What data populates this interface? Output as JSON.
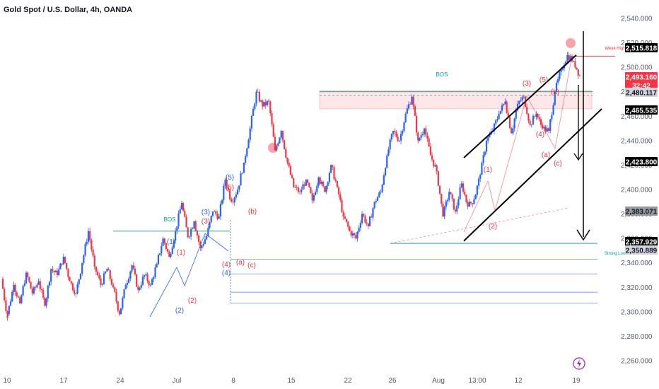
{
  "title": "Gold Spot / U.S. Dollar, 4h, OANDA",
  "chart_data": {
    "type": "candlestick",
    "symbol": "XAUUSD",
    "timeframe": "4h",
    "ylim": [
      2255,
      2545
    ],
    "y_ticks": [
      "2,540.000",
      "2,520.000",
      "2,500.000",
      "2,480.000",
      "2,460.000",
      "2,440.000",
      "2,420.000",
      "2,400.000",
      "2,380.000",
      "2,360.000",
      "2,340.000",
      "2,320.000",
      "2,300.000",
      "2,280.000",
      "2,260.000"
    ],
    "x_ticks": [
      "10",
      "17",
      "24",
      "Jul",
      "8",
      "15",
      "22",
      "26",
      "Aug",
      "13:00",
      "12",
      "19"
    ],
    "colors": {
      "up": "#2962ff",
      "down": "#f23645",
      "bos": "#089981",
      "choch": "#089981",
      "wave_blue": "#2962ff",
      "wave_red": "#f23645"
    },
    "price_path": [
      [
        2327,
        2295
      ],
      [
        2298,
        2322
      ],
      [
        2322,
        2307
      ],
      [
        2307,
        2332
      ],
      [
        2332,
        2315
      ],
      [
        2315,
        2325
      ],
      [
        2325,
        2305
      ],
      [
        2305,
        2335
      ],
      [
        2335,
        2330
      ],
      [
        2330,
        2345
      ],
      [
        2345,
        2325
      ],
      [
        2325,
        2315
      ],
      [
        2315,
        2340
      ],
      [
        2340,
        2366
      ],
      [
        2366,
        2337
      ],
      [
        2337,
        2322
      ],
      [
        2322,
        2335
      ],
      [
        2335,
        2320
      ],
      [
        2320,
        2298
      ],
      [
        2298,
        2322
      ],
      [
        2322,
        2338
      ],
      [
        2338,
        2318
      ],
      [
        2318,
        2330
      ],
      [
        2330,
        2322
      ],
      [
        2322,
        2339
      ],
      [
        2339,
        2360
      ],
      [
        2360,
        2345
      ],
      [
        2345,
        2366
      ],
      [
        2366,
        2389
      ],
      [
        2389,
        2361
      ],
      [
        2361,
        2374
      ],
      [
        2374,
        2352
      ],
      [
        2352,
        2362
      ],
      [
        2362,
        2382
      ],
      [
        2382,
        2378
      ],
      [
        2378,
        2408
      ],
      [
        2408,
        2390
      ],
      [
        2390,
        2400
      ],
      [
        2400,
        2422
      ],
      [
        2422,
        2450
      ],
      [
        2450,
        2480
      ],
      [
        2480,
        2468
      ],
      [
        2468,
        2472
      ],
      [
        2472,
        2432
      ],
      [
        2432,
        2448
      ],
      [
        2448,
        2422
      ],
      [
        2422,
        2402
      ],
      [
        2402,
        2398
      ],
      [
        2398,
        2408
      ],
      [
        2408,
        2391
      ],
      [
        2391,
        2410
      ],
      [
        2410,
        2398
      ],
      [
        2398,
        2420
      ],
      [
        2420,
        2402
      ],
      [
        2402,
        2378
      ],
      [
        2378,
        2366
      ],
      [
        2366,
        2360
      ],
      [
        2360,
        2380
      ],
      [
        2380,
        2370
      ],
      [
        2370,
        2390
      ],
      [
        2390,
        2398
      ],
      [
        2398,
        2428
      ],
      [
        2428,
        2448
      ],
      [
        2448,
        2440
      ],
      [
        2440,
        2462
      ],
      [
        2462,
        2476
      ],
      [
        2476,
        2440
      ],
      [
        2440,
        2450
      ],
      [
        2450,
        2428
      ],
      [
        2428,
        2415
      ],
      [
        2415,
        2378
      ],
      [
        2378,
        2398
      ],
      [
        2398,
        2382
      ],
      [
        2382,
        2405
      ],
      [
        2405,
        2386
      ],
      [
        2386,
        2392
      ],
      [
        2392,
        2412
      ],
      [
        2412,
        2440
      ],
      [
        2440,
        2448
      ],
      [
        2448,
        2462
      ],
      [
        2462,
        2472
      ],
      [
        2472,
        2446
      ],
      [
        2446,
        2470
      ],
      [
        2470,
        2476
      ],
      [
        2476,
        2453
      ],
      [
        2453,
        2462
      ],
      [
        2462,
        2450
      ],
      [
        2450,
        2448
      ],
      [
        2448,
        2480
      ],
      [
        2480,
        2498
      ],
      [
        2498,
        2510
      ],
      [
        2510,
        2505
      ],
      [
        2505,
        2493
      ]
    ],
    "candle_start_date_index": 0,
    "levels": [
      {
        "label": "BOS",
        "price": 2366,
        "color": "#089981"
      },
      {
        "label": "BOS",
        "price": 2479,
        "color": "#089981"
      },
      {
        "label": "Strong Low",
        "price": 2356,
        "color": "#089981"
      },
      {
        "label": "Weak High",
        "price": 2509,
        "color": "#f23645"
      }
    ],
    "fib_lines": [
      2343,
      2331,
      2316,
      2307
    ],
    "zone": {
      "low": 2466,
      "high": 2481,
      "color": "#f23645"
    },
    "channel": "ascending",
    "forecast_arrow": "down",
    "wave_labels": [
      {
        "text": "(1)",
        "color": "#2962ff"
      },
      {
        "text": "(2)",
        "color": "#2962ff"
      },
      {
        "text": "(3)",
        "color": "#2962ff"
      },
      {
        "text": "(4)",
        "color": "#2962ff"
      },
      {
        "text": "(5)",
        "color": "#2962ff"
      },
      {
        "text": "(1)",
        "color": "#f23645"
      },
      {
        "text": "(2)",
        "color": "#f23645"
      },
      {
        "text": "(3)",
        "color": "#f23645"
      },
      {
        "text": "(4)",
        "color": "#f23645"
      },
      {
        "text": "(5)",
        "color": "#f23645"
      },
      {
        "text": "(a)",
        "color": "#f23645"
      },
      {
        "text": "(b)",
        "color": "#f23645"
      },
      {
        "text": "(c)",
        "color": "#f23645"
      }
    ],
    "price_labels": [
      {
        "text": "2,515.818",
        "bg": "#000000",
        "fg": "#ffffff"
      },
      {
        "text": "2,493.160",
        "bg": "#f23645",
        "fg": "#ffffff"
      },
      {
        "text": "32:42",
        "bg": "#f23645",
        "fg": "#ffffff"
      },
      {
        "text": "2,480.117",
        "bg": "#d1d4dc",
        "fg": "#131722"
      },
      {
        "text": "2,465.535",
        "bg": "#000000",
        "fg": "#ffffff"
      },
      {
        "text": "2,423.800",
        "bg": "#000000",
        "fg": "#ffffff"
      },
      {
        "text": "2,383.071",
        "bg": "#9598a1",
        "fg": "#131722"
      },
      {
        "text": "2,357.929",
        "bg": "#000000",
        "fg": "#ffffff"
      },
      {
        "text": "2,350.889",
        "bg": "#d1d4dc",
        "fg": "#131722"
      }
    ]
  }
}
